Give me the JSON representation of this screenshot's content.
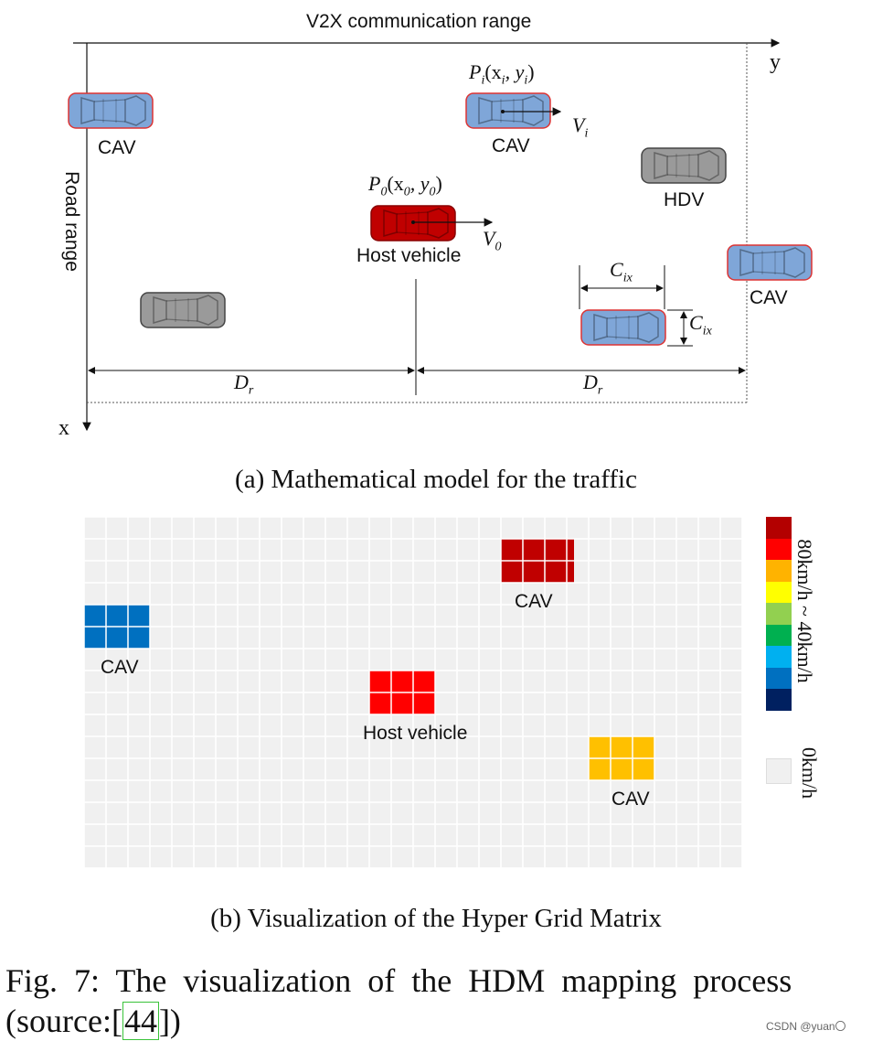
{
  "panel_a": {
    "range_title": "V2X communication range",
    "axis_y": "y",
    "axis_x": "x",
    "road_range": "Road range",
    "vehicles": {
      "cav_top_left": "CAV",
      "cav_top_mid": "CAV",
      "hdv_right": "HDV",
      "host": "Host vehicle",
      "cav_far_right": "CAV"
    },
    "math": {
      "pi_label": "P",
      "pi_sub": "i",
      "pi_args": "(x",
      "pi_arg_sub1": "i",
      "pi_comma": ", y",
      "pi_arg_sub2": "i",
      "pi_close": ")",
      "vi": "V",
      "vi_sub": "i",
      "p0_label": "P",
      "p0_sub": "0",
      "p0_args": "(x",
      "p0_arg_sub1": "0",
      "p0_comma": ", y",
      "p0_arg_sub2": "0",
      "p0_close": ")",
      "v0": "V",
      "v0_sub": "0",
      "c_label": "C",
      "c_sub": "ix",
      "d_label": "D",
      "d_sub": "r"
    },
    "caption": "(a) Mathematical model for the traffic"
  },
  "panel_b": {
    "cells": {
      "cav_top": "CAV",
      "cav_left": "CAV",
      "host": "Host vehicle",
      "cav_bottom": "CAV"
    },
    "legend": {
      "speed_range": "80km/h ~ 40km/h",
      "zero": "0km/h",
      "colors": [
        "#b30000",
        "#ff0000",
        "#ffb300",
        "#ffff00",
        "#92d050",
        "#00b050",
        "#00b0f0",
        "#0070c0",
        "#002060"
      ],
      "empty_color": "#f0f0f0"
    },
    "block_colors": {
      "cav_top": "#c00000",
      "cav_left": "#0070c0",
      "host": "#ff0000",
      "cav_bottom": "#ffc000"
    },
    "caption": "(b) Visualization of the Hyper Grid Matrix"
  },
  "figure_caption": {
    "line1": "Fig.  7:  The  visualization  of  the  HDM  mapping  process",
    "line2_pre": "(source:[",
    "ref": "44",
    "line2_post": "])"
  },
  "watermark": "CSDN @yuan〇"
}
